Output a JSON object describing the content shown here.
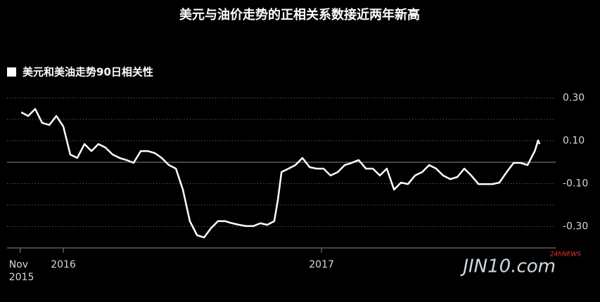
{
  "chart_data": {
    "type": "line",
    "title": "美元与油价走势的正相关系数接近两年新高",
    "watermark": "JIN10.com",
    "watermark_badge": "24hNEWS",
    "x": [
      2015.837,
      2015.864,
      2015.891,
      2015.918,
      2015.946,
      2015.973,
      2016.0,
      2016.027,
      2016.054,
      2016.082,
      2016.109,
      2016.136,
      2016.163,
      2016.191,
      2016.218,
      2016.245,
      2016.272,
      2016.3,
      2016.327,
      2016.354,
      2016.381,
      2016.409,
      2016.436,
      2016.463,
      2016.49,
      2016.518,
      2016.545,
      2016.572,
      2016.599,
      2016.627,
      2016.654,
      2016.681,
      2016.708,
      2016.736,
      2016.763,
      2016.79,
      2016.817,
      2016.831,
      2016.845,
      2016.872,
      2016.899,
      2016.926,
      2016.954,
      2016.981,
      2017.008,
      2017.035,
      2017.063,
      2017.09,
      2017.117,
      2017.144,
      2017.172,
      2017.199,
      2017.226,
      2017.253,
      2017.281,
      2017.308,
      2017.335,
      2017.362,
      2017.39,
      2017.417,
      2017.444,
      2017.471,
      2017.499,
      2017.526,
      2017.553,
      2017.58,
      2017.608,
      2017.635,
      2017.662,
      2017.689,
      2017.717,
      2017.744,
      2017.771,
      2017.798,
      2017.826,
      2017.839,
      2017.845
    ],
    "series": [
      {
        "name": "美元和美油走势90日相关性",
        "color": "#ffffff",
        "values": [
          0.233,
          0.216,
          0.249,
          0.184,
          0.174,
          0.216,
          0.167,
          0.036,
          0.02,
          0.085,
          0.052,
          0.085,
          0.069,
          0.036,
          0.02,
          0.01,
          -0.003,
          0.052,
          0.052,
          0.043,
          0.02,
          -0.013,
          -0.03,
          -0.128,
          -0.275,
          -0.341,
          -0.351,
          -0.308,
          -0.275,
          -0.275,
          -0.285,
          -0.292,
          -0.298,
          -0.298,
          -0.285,
          -0.292,
          -0.275,
          -0.177,
          -0.046,
          -0.03,
          -0.013,
          0.02,
          -0.023,
          -0.03,
          -0.03,
          -0.062,
          -0.046,
          -0.013,
          -0.003,
          0.01,
          -0.03,
          -0.03,
          -0.062,
          -0.03,
          -0.128,
          -0.095,
          -0.102,
          -0.062,
          -0.046,
          -0.013,
          -0.03,
          -0.062,
          -0.079,
          -0.069,
          -0.03,
          -0.062,
          -0.102,
          -0.102,
          -0.102,
          -0.095,
          -0.046,
          -0.003,
          -0.003,
          -0.013,
          0.052,
          0.102,
          0.085
        ]
      }
    ],
    "xlim": [
      2015.782,
      2017.907
    ],
    "xticks": [
      {
        "value": 2015.833,
        "label": "Nov\n2015"
      },
      {
        "value": 2016,
        "label": "2016"
      },
      {
        "value": 2017,
        "label": "2017"
      }
    ],
    "ylim": [
      -0.4,
      0.33
    ],
    "yticks": [
      {
        "value": 0.3,
        "label": "0.30"
      },
      {
        "value": 0.1,
        "label": "0.10"
      },
      {
        "value": -0.1,
        "label": "-0.10"
      },
      {
        "value": -0.3,
        "label": "-0.30"
      }
    ],
    "minor_yticks": [
      0.2,
      -0.2
    ],
    "zero_line": 0,
    "grid": true,
    "background": "#000000"
  }
}
